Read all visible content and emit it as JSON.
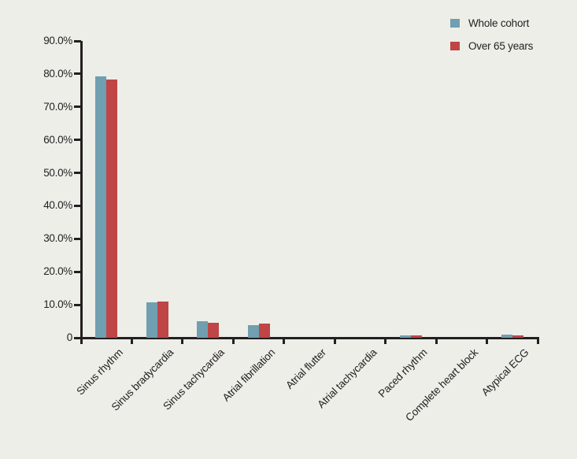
{
  "chart_data": {
    "type": "bar",
    "title": "",
    "xlabel": "",
    "ylabel": "",
    "ylim": [
      0,
      90
    ],
    "ytick_step": 10,
    "ytick_labels": [
      "0",
      "10.0%",
      "20.0%",
      "30.0%",
      "40.0%",
      "50.0%",
      "60.0%",
      "70.0%",
      "80.0%",
      "90.0%"
    ],
    "grid": false,
    "legend_position": "top-right",
    "categories": [
      "Sinus rhythm",
      "Sinus bradycardia",
      "Sinus tachycardia",
      "Atrial fibrillation",
      "Atrial flutter",
      "Atrial tachycardia",
      "Paced rhythm",
      "Complete heart block",
      "Atypical ECG"
    ],
    "series": [
      {
        "name": "Whole cohort",
        "color": "#6f9fb0",
        "values": [
          79.2,
          10.8,
          4.9,
          3.8,
          0,
          0,
          0.6,
          0,
          1.0
        ]
      },
      {
        "name": "Over 65 years",
        "color": "#bf4546",
        "values": [
          78.4,
          11.0,
          4.5,
          4.3,
          0,
          0,
          0.8,
          0,
          0.7
        ]
      }
    ]
  },
  "colors": {
    "background": "#edeee8",
    "axis": "#231f20",
    "text": "#231f20"
  }
}
